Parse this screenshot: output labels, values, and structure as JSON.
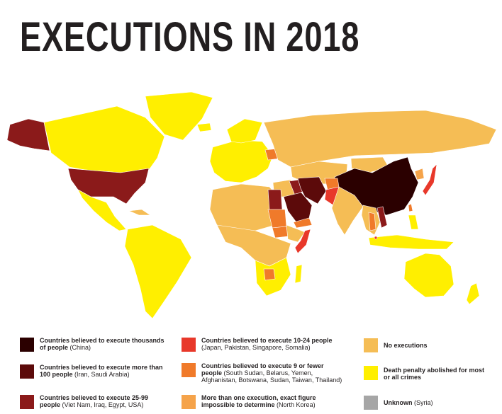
{
  "title": "EXECUTIONS IN 2018",
  "colors": {
    "thousands": "#2b0000",
    "over100": "#5c0a0a",
    "c25_99": "#8b1a1a",
    "c10_24": "#e8382a",
    "c9_fewer": "#f07a2a",
    "uncertain": "#f5a34a",
    "no_executions": "#f5bd55",
    "abolished": "#ffef00",
    "unknown": "#a6a6a6"
  },
  "legend": [
    {
      "key": "thousands",
      "label": "Countries believed to execute thousands of people",
      "examples": "(China)"
    },
    {
      "key": "over100",
      "label": "Countries believed to execute more than 100 people",
      "examples": "(Iran, Saudi Arabia)"
    },
    {
      "key": "c25_99",
      "label": "Countries believed to execute 25-99 people",
      "examples": "(Viet Nam, Iraq, Egypt, USA)"
    },
    {
      "key": "c10_24",
      "label": "Countries believed to execute 10-24 people",
      "examples": "(Japan, Pakistan, Singapore, Somalia)"
    },
    {
      "key": "c9_fewer",
      "label": "Countries believed to execute 9 or fewer people",
      "examples": "(South Sudan, Belarus, Yemen, Afghanistan, Botswana, Sudan, Taiwan, Thailand)"
    },
    {
      "key": "uncertain",
      "label": "More than one execution, exact figure impossible to determine",
      "examples": "(North Korea)"
    },
    {
      "key": "no_executions",
      "label": "No executions",
      "examples": ""
    },
    {
      "key": "abolished",
      "label": "Death penalty abolished for most or all crimes",
      "examples": ""
    },
    {
      "key": "unknown",
      "label": "Unknown",
      "examples": "(Syria)"
    }
  ]
}
